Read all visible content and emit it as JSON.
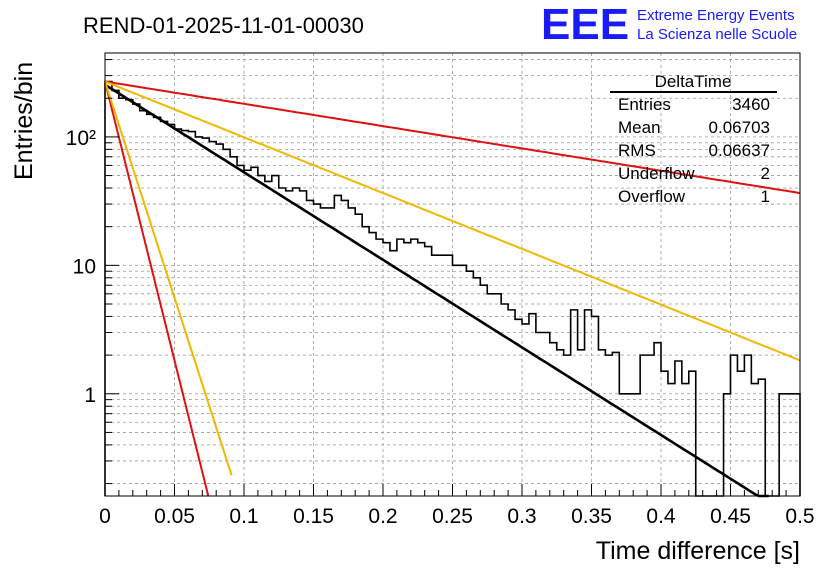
{
  "title": "REND-01-2025-11-01-00030",
  "logo": {
    "mark": "EEE",
    "line1": "Extreme Energy Events",
    "line2": "La Scienza nelle Scuole",
    "color": "#1a1aff"
  },
  "stats_box": {
    "title": "DeltaTime",
    "rows": [
      {
        "label": "Entries",
        "value": "3460"
      },
      {
        "label": "Mean",
        "value": "0.06703"
      },
      {
        "label": "RMS",
        "value": "0.06637"
      },
      {
        "label": "Underflow",
        "value": "2"
      },
      {
        "label": "Overflow",
        "value": "1"
      }
    ]
  },
  "chart_data": {
    "type": "histogram",
    "title": "REND-01-2025-11-01-00030",
    "xlabel": "Time difference [s]",
    "ylabel": "Entries/bin",
    "xlim": [
      0,
      0.5
    ],
    "ylim": [
      0.16,
      450
    ],
    "yscale": "log",
    "grid": true,
    "x_ticks": [
      0,
      0.05,
      0.1,
      0.15,
      0.2,
      0.25,
      0.3,
      0.35,
      0.4,
      0.45,
      0.5
    ],
    "x_tick_labels": [
      "0",
      "0.05",
      "0.1",
      "0.15",
      "0.2",
      "0.25",
      "0.3",
      "0.35",
      "0.4",
      "0.45",
      "0.5"
    ],
    "y_ticks": [
      1,
      10,
      100
    ],
    "y_tick_labels": [
      "1",
      "10",
      "10²"
    ],
    "bin_width": 0.005,
    "histogram_values": [
      270,
      230,
      200,
      195,
      180,
      160,
      150,
      142,
      132,
      125,
      115,
      112,
      110,
      100,
      98,
      92,
      88,
      80,
      70,
      60,
      55,
      58,
      50,
      45,
      50,
      40,
      38,
      40,
      38,
      32,
      30,
      28,
      28,
      35,
      32,
      28,
      25,
      20,
      18,
      16,
      15,
      13,
      16,
      15,
      16,
      15,
      14,
      12,
      12,
      12,
      10,
      10,
      9,
      8,
      7,
      6,
      6,
      5,
      4.5,
      3.8,
      3.5,
      4.2,
      3,
      3,
      2.5,
      2.2,
      2,
      4.5,
      2.2,
      4.5,
      4,
      2.2,
      2,
      2.1,
      1,
      1,
      1,
      2,
      2,
      2.5,
      1.5,
      1.2,
      1.8,
      1.2,
      1.5,
      0,
      0,
      0,
      0,
      1,
      2,
      1.5,
      2,
      1.2,
      1.3,
      0,
      0,
      1,
      1,
      1
    ],
    "series": [
      {
        "name": "fit",
        "type": "exponential",
        "color": "#000000",
        "A": 255,
        "tau": 0.0637,
        "x_range": [
          0,
          0.4775
        ]
      },
      {
        "name": "red-slow",
        "type": "exponential",
        "color": "#dd1111",
        "A": 270,
        "tau": 0.25,
        "x_range": [
          0,
          0.5
        ]
      },
      {
        "name": "orange-slow",
        "type": "exponential",
        "color": "#f0b800",
        "A": 270,
        "tau": 0.1,
        "x_range": [
          0,
          0.5
        ]
      },
      {
        "name": "red-fast",
        "type": "exponential",
        "color": "#dd1111",
        "A": 270,
        "tau": 0.01,
        "x_range": [
          0,
          0.0745
        ]
      },
      {
        "name": "orange-fast",
        "type": "exponential",
        "color": "#f0b800",
        "A": 270,
        "tau": 0.0129,
        "x_range": [
          0,
          0.0911
        ]
      }
    ]
  }
}
